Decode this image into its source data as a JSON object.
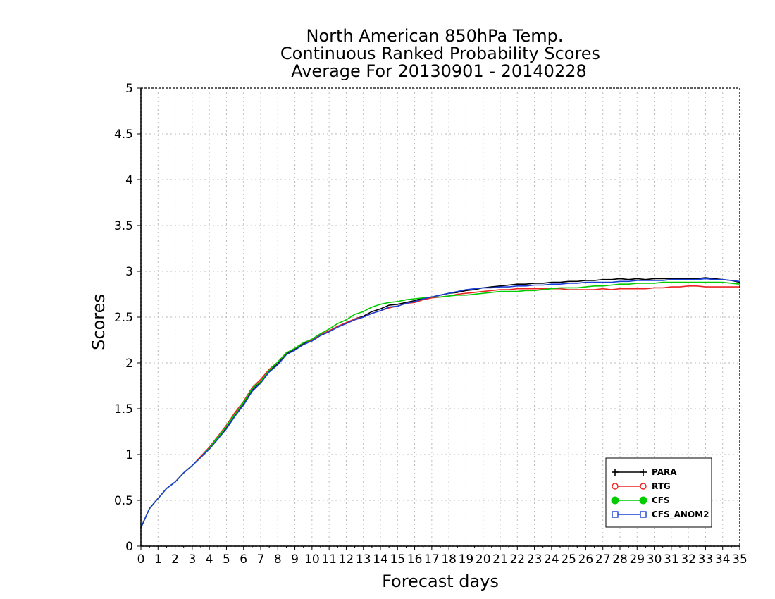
{
  "chart_data": {
    "type": "line",
    "title_lines": [
      "North American 850hPa Temp.",
      "Continuous Ranked Probability Scores",
      "Average For 20130901 - 20140228"
    ],
    "xlabel": "Forecast days",
    "ylabel": "Scores",
    "xlim": [
      0,
      35
    ],
    "ylim": [
      0,
      5
    ],
    "x_ticks": [
      0,
      1,
      2,
      3,
      4,
      5,
      6,
      7,
      8,
      9,
      10,
      11,
      12,
      13,
      14,
      15,
      16,
      17,
      18,
      19,
      20,
      21,
      22,
      23,
      24,
      25,
      26,
      27,
      28,
      29,
      30,
      31,
      32,
      33,
      34,
      35
    ],
    "y_ticks": [
      "0",
      "0.5",
      "1",
      "1.5",
      "2",
      "2.5",
      "3",
      "3.5",
      "4",
      "4.5",
      "5"
    ],
    "grid": true,
    "legend_position": "bottom-right",
    "x": [
      0,
      0.5,
      1,
      1.5,
      2,
      2.5,
      3,
      3.5,
      4,
      4.5,
      5,
      5.5,
      6,
      6.5,
      7,
      7.5,
      8,
      8.5,
      9,
      9.5,
      10,
      10.5,
      11,
      11.5,
      12,
      12.5,
      13,
      13.5,
      14,
      14.5,
      15,
      15.5,
      16,
      16.5,
      17,
      17.5,
      18,
      18.5,
      19,
      19.5,
      20,
      20.5,
      21,
      21.5,
      22,
      22.5,
      23,
      23.5,
      24,
      24.5,
      25,
      25.5,
      26,
      26.5,
      27,
      27.5,
      28,
      28.5,
      29,
      29.5,
      30,
      30.5,
      31,
      31.5,
      32,
      32.5,
      33,
      33.5,
      34,
      34.5,
      35
    ],
    "series": [
      {
        "name": "PARA",
        "color": "#000000",
        "marker": "plus",
        "values": [
          0.2,
          0.41,
          0.52,
          0.63,
          0.7,
          0.8,
          0.88,
          0.97,
          1.06,
          1.17,
          1.29,
          1.43,
          1.55,
          1.7,
          1.79,
          1.91,
          1.99,
          2.1,
          2.15,
          2.21,
          2.24,
          2.3,
          2.34,
          2.4,
          2.43,
          2.48,
          2.51,
          2.56,
          2.59,
          2.63,
          2.64,
          2.66,
          2.68,
          2.71,
          2.72,
          2.74,
          2.76,
          2.77,
          2.79,
          2.8,
          2.82,
          2.83,
          2.84,
          2.85,
          2.86,
          2.86,
          2.87,
          2.87,
          2.88,
          2.88,
          2.89,
          2.89,
          2.9,
          2.9,
          2.91,
          2.91,
          2.92,
          2.91,
          2.92,
          2.91,
          2.92,
          2.92,
          2.92,
          2.92,
          2.92,
          2.92,
          2.93,
          2.92,
          2.91,
          2.9,
          2.88
        ]
      },
      {
        "name": "RTG",
        "color": "#ee2222",
        "marker": "circle-open",
        "values": [
          0.2,
          0.41,
          0.52,
          0.63,
          0.7,
          0.8,
          0.88,
          0.98,
          1.08,
          1.2,
          1.32,
          1.46,
          1.58,
          1.73,
          1.82,
          1.93,
          2.01,
          2.11,
          2.16,
          2.22,
          2.25,
          2.31,
          2.35,
          2.4,
          2.44,
          2.48,
          2.5,
          2.54,
          2.57,
          2.6,
          2.62,
          2.65,
          2.66,
          2.69,
          2.71,
          2.72,
          2.73,
          2.75,
          2.76,
          2.77,
          2.78,
          2.79,
          2.8,
          2.8,
          2.81,
          2.81,
          2.81,
          2.81,
          2.81,
          2.81,
          2.8,
          2.8,
          2.8,
          2.8,
          2.81,
          2.8,
          2.81,
          2.81,
          2.81,
          2.81,
          2.82,
          2.82,
          2.83,
          2.83,
          2.84,
          2.84,
          2.83,
          2.83,
          2.83,
          2.83,
          2.83
        ]
      },
      {
        "name": "CFS",
        "color": "#00cc00",
        "marker": "circle-filled",
        "values": [
          0.2,
          0.41,
          0.52,
          0.63,
          0.7,
          0.8,
          0.88,
          0.97,
          1.07,
          1.19,
          1.31,
          1.44,
          1.57,
          1.72,
          1.8,
          1.92,
          2.01,
          2.11,
          2.16,
          2.22,
          2.26,
          2.32,
          2.37,
          2.43,
          2.47,
          2.53,
          2.56,
          2.61,
          2.64,
          2.66,
          2.67,
          2.69,
          2.7,
          2.71,
          2.72,
          2.72,
          2.73,
          2.74,
          2.74,
          2.75,
          2.76,
          2.77,
          2.78,
          2.78,
          2.78,
          2.79,
          2.79,
          2.8,
          2.81,
          2.82,
          2.82,
          2.82,
          2.83,
          2.84,
          2.84,
          2.85,
          2.86,
          2.86,
          2.87,
          2.87,
          2.87,
          2.88,
          2.88,
          2.88,
          2.88,
          2.88,
          2.88,
          2.88,
          2.88,
          2.87,
          2.86
        ]
      },
      {
        "name": "CFS_ANOM2",
        "color": "#1a3fd6",
        "marker": "square-open",
        "values": [
          0.2,
          0.41,
          0.52,
          0.63,
          0.7,
          0.8,
          0.88,
          0.97,
          1.06,
          1.17,
          1.28,
          1.42,
          1.54,
          1.69,
          1.78,
          1.9,
          1.98,
          2.09,
          2.14,
          2.2,
          2.24,
          2.3,
          2.34,
          2.39,
          2.43,
          2.47,
          2.5,
          2.54,
          2.57,
          2.61,
          2.62,
          2.65,
          2.67,
          2.7,
          2.72,
          2.74,
          2.76,
          2.78,
          2.8,
          2.81,
          2.82,
          2.82,
          2.83,
          2.83,
          2.84,
          2.84,
          2.85,
          2.85,
          2.86,
          2.86,
          2.87,
          2.87,
          2.88,
          2.88,
          2.88,
          2.88,
          2.89,
          2.89,
          2.9,
          2.9,
          2.9,
          2.9,
          2.91,
          2.91,
          2.91,
          2.91,
          2.92,
          2.91,
          2.91,
          2.9,
          2.89
        ]
      }
    ]
  }
}
